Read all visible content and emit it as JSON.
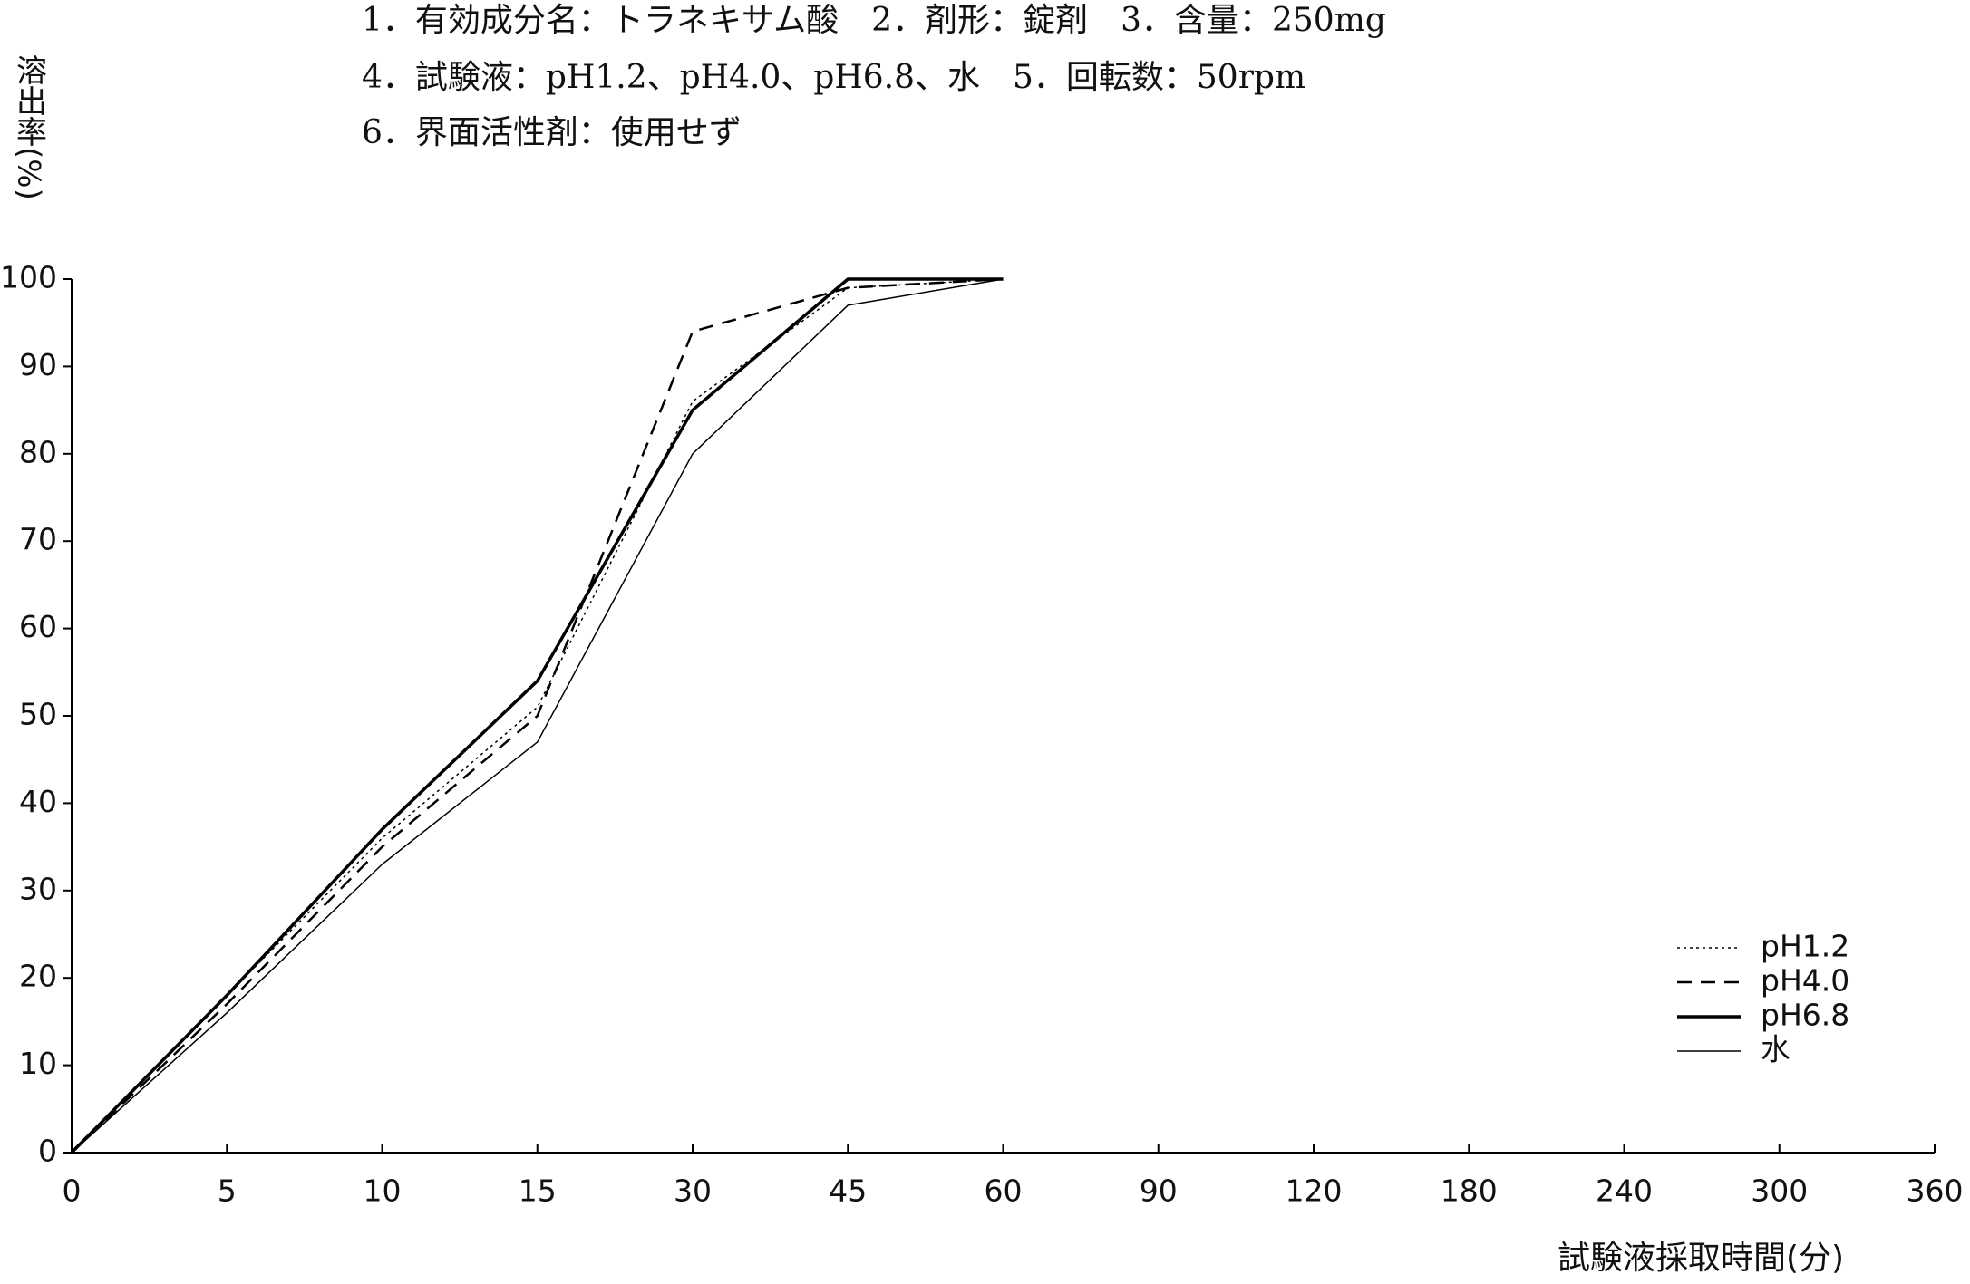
{
  "chart_data": {
    "type": "line",
    "title_lines": [
      "1．有効成分名：トラネキサム酸　2．剤形：錠剤　3．含量：250mg",
      "4．試験液：pH1.2、pH4.0、pH6.8、水　5．回転数：50rpm",
      "6．界面活性剤：使用せず"
    ],
    "y_label": "溶出率(%)",
    "x_label": "試験液採取時間(分)",
    "categories": [
      "0",
      "5",
      "10",
      "15",
      "30",
      "45",
      "60",
      "90",
      "120",
      "180",
      "240",
      "300",
      "360"
    ],
    "series": [
      {
        "name": "pH1.2",
        "color": "#000000",
        "line_style": "dotted",
        "line_width": 1.5,
        "values": [
          0,
          18,
          36,
          51,
          86,
          99,
          100,
          null,
          null,
          null,
          null,
          null,
          null
        ]
      },
      {
        "name": "pH4.0",
        "color": "#000000",
        "line_style": "dashed",
        "line_width": 2.5,
        "values": [
          0,
          17,
          35,
          50,
          94,
          99,
          100,
          null,
          null,
          null,
          null,
          null,
          null
        ]
      },
      {
        "name": "pH6.8",
        "color": "#000000",
        "line_style": "solid",
        "line_width": 3.5,
        "values": [
          0,
          18,
          37,
          54,
          85,
          100,
          100,
          null,
          null,
          null,
          null,
          null,
          null
        ]
      },
      {
        "name": "水",
        "color": "#000000",
        "line_style": "solid",
        "line_width": 1.5,
        "values": [
          0,
          16,
          33,
          47,
          80,
          97,
          100,
          null,
          null,
          null,
          null,
          null,
          null
        ]
      }
    ],
    "ylim": [
      0,
      100
    ],
    "yticks": [
      0,
      10,
      20,
      30,
      40,
      50,
      60,
      70,
      80,
      90,
      100
    ],
    "grid": false,
    "legend": "lower right"
  }
}
